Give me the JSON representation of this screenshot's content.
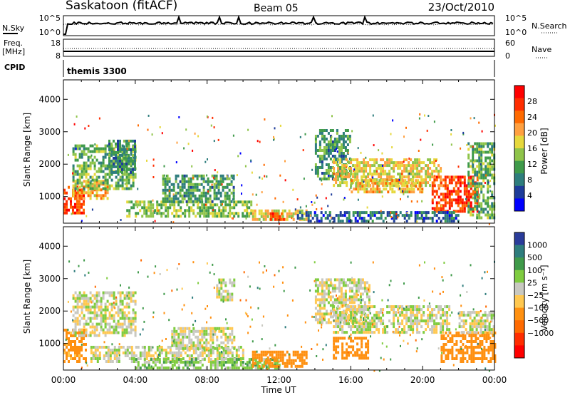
{
  "header": {
    "station": "Saskatoon (fitACF)",
    "beam": "Beam 05",
    "date": "23/Oct/2010"
  },
  "noise_panel": {
    "left_label": "N.Sky",
    "right_label": "N.Search",
    "left_ticks": [
      "10^5",
      "10^0"
    ],
    "right_ticks": [
      "10^5",
      "10^0"
    ]
  },
  "freq_panel": {
    "left_label_1": "Freq.",
    "left_label_2": "[MHz]",
    "right_label": "Nave",
    "left_ticks": [
      "18",
      "8"
    ],
    "right_ticks": [
      "60",
      "0"
    ]
  },
  "cpid_panel": {
    "label": "CPID",
    "value": "themis 3300"
  },
  "x_axis": {
    "label": "Time UT",
    "ticks": [
      "00:00",
      "04:00",
      "08:00",
      "12:00",
      "16:00",
      "20:00",
      "00:00"
    ]
  },
  "chart_data": [
    {
      "type": "heatmap",
      "quantity": "Power",
      "ylabel": "Slant Range [km]",
      "yticks": [
        1000,
        2000,
        3000,
        4000
      ],
      "ylim": [
        180,
        4600
      ],
      "xlim_hours": [
        0,
        24
      ],
      "colorbar": {
        "label": "Power [dB]",
        "ticks": [
          "4",
          "8",
          "12",
          "16",
          "20",
          "24",
          "28"
        ],
        "colors": [
          "#0000ff",
          "#1e3c9a",
          "#2e7d7d",
          "#3f9a4a",
          "#8fc44a",
          "#e6d83c",
          "#ffa040",
          "#ff6a00",
          "#ff2d00",
          "#ff0000"
        ]
      },
      "regions": [
        {
          "t0": 0.0,
          "t1": 1.1,
          "r0": 450,
          "r1": 1300,
          "value": 28
        },
        {
          "t0": 0.5,
          "t1": 2.5,
          "r0": 900,
          "r1": 1500,
          "value": 20
        },
        {
          "t0": 0.5,
          "t1": 4.0,
          "r0": 1200,
          "r1": 2600,
          "value": 12
        },
        {
          "t0": 2.5,
          "t1": 4.0,
          "r0": 1700,
          "r1": 2700,
          "value": 8
        },
        {
          "t0": 3.5,
          "t1": 10.5,
          "r0": 350,
          "r1": 800,
          "value": 14
        },
        {
          "t0": 5.5,
          "t1": 9.5,
          "r0": 800,
          "r1": 1600,
          "value": 10
        },
        {
          "t0": 10.5,
          "t1": 13.5,
          "r0": 250,
          "r1": 600,
          "value": 18
        },
        {
          "t0": 11.5,
          "t1": 12.3,
          "r0": 250,
          "r1": 500,
          "value": 28
        },
        {
          "t0": 14.0,
          "t1": 16.0,
          "r0": 1500,
          "r1": 3000,
          "value": 10
        },
        {
          "t0": 15.0,
          "t1": 21.0,
          "r0": 1300,
          "r1": 2100,
          "value": 18
        },
        {
          "t0": 16.0,
          "t1": 20.0,
          "r0": 1100,
          "r1": 1500,
          "value": 20
        },
        {
          "t0": 20.5,
          "t1": 23.0,
          "r0": 500,
          "r1": 1600,
          "value": 28
        },
        {
          "t0": 22.5,
          "t1": 24.0,
          "r0": 300,
          "r1": 2600,
          "value": 12
        },
        {
          "t0": 13.0,
          "t1": 22.0,
          "r0": 200,
          "r1": 500,
          "value": 6
        }
      ]
    },
    {
      "type": "heatmap",
      "quantity": "Velocity",
      "ylabel": "Slant Range [km]",
      "yticks": [
        1000,
        2000,
        3000,
        4000
      ],
      "ylim": [
        180,
        4600
      ],
      "xlim_hours": [
        0,
        24
      ],
      "colorbar": {
        "label": "Velocity [m s⁻¹]",
        "ticks": [
          "1000",
          "500",
          "100",
          "25",
          "−25",
          "−100",
          "−500",
          "−1000"
        ],
        "colors": [
          "#2a3c9a",
          "#2e7d7d",
          "#3f9a4a",
          "#7fcc40",
          "#c8c8c0",
          "#ffc850",
          "#ff9010",
          "#ff6a00",
          "#ff2d00",
          "#ff0000"
        ]
      },
      "regions": [
        {
          "t0": 0.0,
          "t1": 1.2,
          "r0": 400,
          "r1": 1400,
          "value": -150
        },
        {
          "t0": 0.5,
          "t1": 4.0,
          "r0": 1200,
          "r1": 2600,
          "value": 0
        },
        {
          "t0": 1.5,
          "t1": 10.0,
          "r0": 400,
          "r1": 900,
          "value": 0
        },
        {
          "t0": 4.0,
          "t1": 12.0,
          "r0": 200,
          "r1": 500,
          "value": 60
        },
        {
          "t0": 6.0,
          "t1": 9.5,
          "r0": 800,
          "r1": 1500,
          "value": 0
        },
        {
          "t0": 8.5,
          "t1": 9.5,
          "r0": 2300,
          "r1": 3000,
          "value": 0
        },
        {
          "t0": 10.5,
          "t1": 13.5,
          "r0": 250,
          "r1": 700,
          "value": -200
        },
        {
          "t0": 14.0,
          "t1": 17.0,
          "r0": 1600,
          "r1": 3000,
          "value": 0
        },
        {
          "t0": 15.0,
          "t1": 21.5,
          "r0": 1300,
          "r1": 2100,
          "value": 0
        },
        {
          "t0": 15.0,
          "t1": 17.0,
          "r0": 500,
          "r1": 1200,
          "value": -200
        },
        {
          "t0": 21.0,
          "t1": 24.0,
          "r0": 400,
          "r1": 1300,
          "value": -300
        },
        {
          "t0": 22.0,
          "t1": 24.0,
          "r0": 1300,
          "r1": 2000,
          "value": 0
        }
      ]
    }
  ]
}
